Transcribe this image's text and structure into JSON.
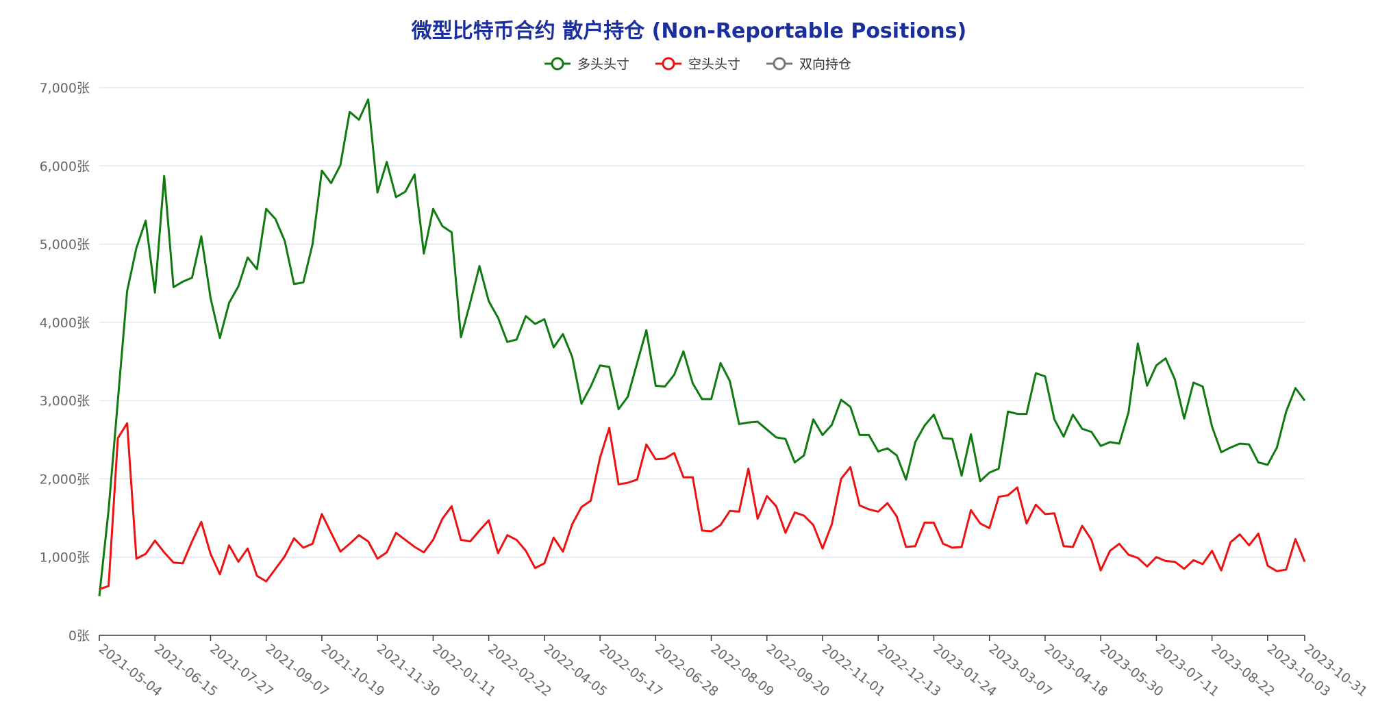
{
  "chart_data": {
    "type": "line",
    "title": "微型比特币合约 散户持仓 (Non-Reportable Positions)",
    "y_unit_suffix": "张",
    "ylim": [
      0,
      7000
    ],
    "y_ticks": [
      "0张",
      "1,000张",
      "2,000张",
      "3,000张",
      "4,000张",
      "5,000张",
      "6,000张",
      "7,000张"
    ],
    "y_tick_values": [
      0,
      1000,
      2000,
      3000,
      4000,
      5000,
      6000,
      7000
    ],
    "grid": true,
    "legend_position": "top-center",
    "x_tick_labels": [
      "2021-05-04",
      "2021-06-15",
      "2021-07-27",
      "2021-09-07",
      "2021-10-19",
      "2021-11-30",
      "2022-01-11",
      "2022-02-22",
      "2022-04-05",
      "2022-05-17",
      "2022-06-28",
      "2022-08-09",
      "2022-09-20",
      "2022-11-01",
      "2022-12-13",
      "2023-01-24",
      "2023-03-07",
      "2023-04-18",
      "2023-05-30",
      "2023-07-11",
      "2023-08-22",
      "2023-10-03",
      "2023-10-31"
    ],
    "x_tick_indices": [
      0,
      6,
      12,
      18,
      24,
      30,
      36,
      42,
      48,
      54,
      60,
      66,
      72,
      78,
      84,
      90,
      96,
      102,
      108,
      114,
      120,
      126,
      130
    ],
    "series": [
      {
        "name": "多头头寸",
        "color": "#0f7a0f",
        "values": [
          500,
          1600,
          3000,
          4400,
          4950,
          5300,
          4380,
          5870,
          4450,
          4520,
          4570,
          5100,
          4310,
          3800,
          4250,
          4460,
          4830,
          4680,
          5450,
          5320,
          5040,
          4490,
          4510,
          5000,
          5940,
          5780,
          6010,
          6690,
          6590,
          6850,
          5660,
          6050,
          5600,
          5670,
          5890,
          4880,
          5450,
          5230,
          5150,
          3810,
          4250,
          4720,
          4270,
          4060,
          3750,
          3780,
          4080,
          3980,
          4040,
          3680,
          3850,
          3560,
          2960,
          3180,
          3450,
          3430,
          2890,
          3050,
          3480,
          3900,
          3190,
          3180,
          3330,
          3630,
          3220,
          3020,
          3020,
          3480,
          3250,
          2700,
          2720,
          2730,
          2630,
          2530,
          2510,
          2210,
          2300,
          2760,
          2560,
          2690,
          3010,
          2920,
          2560,
          2560,
          2350,
          2390,
          2300,
          1990,
          2470,
          2680,
          2820,
          2520,
          2510,
          2040,
          2570,
          1970,
          2080,
          2130,
          2860,
          2830,
          2830,
          3350,
          3310,
          2760,
          2540,
          2820,
          2640,
          2600,
          2420,
          2470,
          2450,
          2850,
          3730,
          3190,
          3450,
          3540,
          3270,
          2770,
          3230,
          3180,
          2670,
          2340,
          2400,
          2450,
          2440,
          2210,
          2180,
          2400,
          2860,
          3160,
          3000
        ]
      },
      {
        "name": "空头头寸",
        "color": "#ee1111",
        "values": [
          590,
          630,
          2520,
          2710,
          980,
          1040,
          1210,
          1060,
          930,
          920,
          1200,
          1450,
          1040,
          780,
          1150,
          940,
          1110,
          760,
          690,
          850,
          1010,
          1240,
          1120,
          1170,
          1550,
          1310,
          1070,
          1170,
          1280,
          1200,
          980,
          1060,
          1310,
          1220,
          1130,
          1060,
          1220,
          1490,
          1650,
          1220,
          1200,
          1340,
          1470,
          1050,
          1280,
          1220,
          1080,
          860,
          920,
          1250,
          1070,
          1420,
          1640,
          1720,
          2270,
          2650,
          1930,
          1950,
          1990,
          2440,
          2250,
          2260,
          2330,
          2020,
          2020,
          1340,
          1330,
          1410,
          1590,
          1580,
          2130,
          1490,
          1780,
          1650,
          1310,
          1570,
          1530,
          1410,
          1110,
          1420,
          2000,
          2150,
          1660,
          1610,
          1580,
          1690,
          1520,
          1130,
          1140,
          1440,
          1440,
          1170,
          1120,
          1130,
          1600,
          1430,
          1370,
          1770,
          1790,
          1890,
          1430,
          1670,
          1550,
          1560,
          1140,
          1130,
          1400,
          1220,
          830,
          1080,
          1170,
          1030,
          990,
          880,
          1000,
          950,
          940,
          850,
          960,
          910,
          1080,
          830,
          1190,
          1290,
          1150,
          1300,
          890,
          820,
          840,
          1230,
          940
        ]
      },
      {
        "name": "双向持仓",
        "color": "#777777",
        "values": []
      }
    ]
  }
}
